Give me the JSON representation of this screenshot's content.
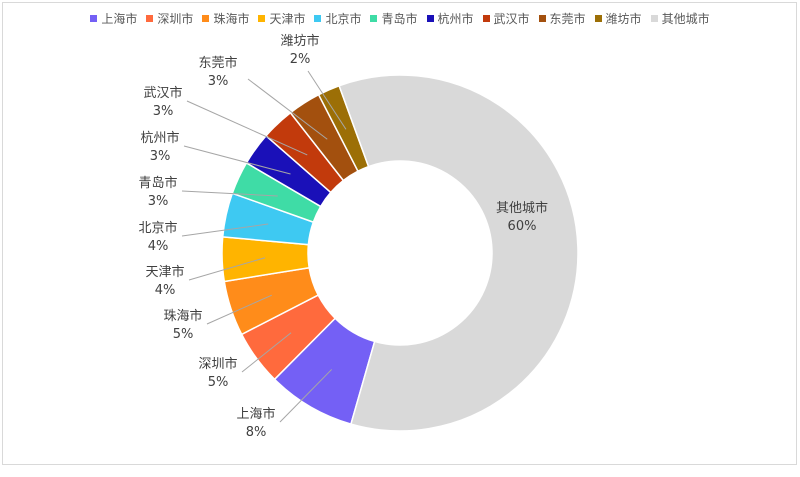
{
  "chart_data": {
    "type": "pie",
    "variant": "donut",
    "categories": [
      "上海市",
      "深圳市",
      "珠海市",
      "天津市",
      "北京市",
      "青岛市",
      "杭州市",
      "武汉市",
      "东莞市",
      "潍坊市",
      "其他城市"
    ],
    "values": [
      8,
      5,
      5,
      4,
      4,
      3,
      3,
      3,
      3,
      2,
      60
    ],
    "value_labels": [
      "8%",
      "5%",
      "5%",
      "4%",
      "4%",
      "3%",
      "3%",
      "3%",
      "3%",
      "2%",
      "60%"
    ],
    "colors": [
      "#7460f5",
      "#ff6a3d",
      "#ff8c1a",
      "#ffb400",
      "#3ec9f2",
      "#3fdca6",
      "#1a10b8",
      "#c23a0c",
      "#a3500e",
      "#9c6f06",
      "#d9d9d9"
    ],
    "legend_position": "top",
    "title": "",
    "unit": "%"
  }
}
